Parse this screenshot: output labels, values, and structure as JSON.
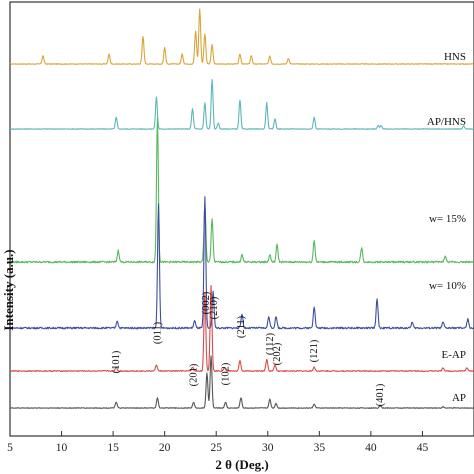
{
  "chart_data": {
    "type": "line",
    "title": "",
    "xlabel": "2 θ (Deg.)",
    "ylabel": "Intensity (a.u.)",
    "xlim": [
      5,
      50
    ],
    "x_ticks": [
      5,
      10,
      15,
      20,
      25,
      30,
      35,
      40,
      45
    ],
    "grid": false,
    "series": [
      {
        "name": "HNS",
        "color": "#d9a53a",
        "peaks": [
          [
            8.2,
            0.15
          ],
          [
            14.6,
            0.18
          ],
          [
            17.9,
            0.5
          ],
          [
            20.0,
            0.3
          ],
          [
            21.7,
            0.18
          ],
          [
            23.0,
            0.6
          ],
          [
            23.4,
            1.0
          ],
          [
            23.9,
            0.55
          ],
          [
            24.6,
            0.35
          ],
          [
            27.3,
            0.18
          ],
          [
            28.4,
            0.15
          ],
          [
            30.2,
            0.14
          ],
          [
            32.0,
            0.1
          ]
        ]
      },
      {
        "name": "AP/HNS",
        "color": "#5fb6b9",
        "peaks": [
          [
            15.3,
            0.2
          ],
          [
            19.2,
            0.55
          ],
          [
            22.7,
            0.35
          ],
          [
            23.9,
            0.45
          ],
          [
            24.6,
            0.85
          ],
          [
            25.2,
            0.1
          ],
          [
            27.3,
            0.5
          ],
          [
            29.9,
            0.45
          ],
          [
            30.7,
            0.18
          ],
          [
            34.5,
            0.2
          ],
          [
            40.7,
            0.06
          ],
          [
            41.0,
            0.06
          ],
          [
            49.0,
            0.05
          ]
        ]
      },
      {
        "name": "w= 15%",
        "color": "#58b85c",
        "peaks": [
          [
            15.5,
            0.08
          ],
          [
            19.3,
            1.0
          ],
          [
            23.9,
            0.4
          ],
          [
            24.6,
            0.3
          ],
          [
            27.5,
            0.05
          ],
          [
            30.2,
            0.05
          ],
          [
            30.9,
            0.12
          ],
          [
            34.5,
            0.15
          ],
          [
            39.1,
            0.1
          ],
          [
            47.2,
            0.04
          ]
        ]
      },
      {
        "name": "w= 10%",
        "color": "#3f4fa0",
        "peaks": [
          [
            15.4,
            0.05
          ],
          [
            19.4,
            0.85
          ],
          [
            22.9,
            0.05
          ],
          [
            23.9,
            0.9
          ],
          [
            24.7,
            0.25
          ],
          [
            27.5,
            0.1
          ],
          [
            30.1,
            0.08
          ],
          [
            30.8,
            0.08
          ],
          [
            34.5,
            0.15
          ],
          [
            40.6,
            0.2
          ],
          [
            44.0,
            0.04
          ],
          [
            47.0,
            0.04
          ],
          [
            49.4,
            0.06
          ]
        ]
      },
      {
        "name": "E-AP",
        "color": "#d94a4a",
        "peaks": [
          [
            15.3,
            0.05
          ],
          [
            19.2,
            0.08
          ],
          [
            22.7,
            0.05
          ],
          [
            23.9,
            1.0
          ],
          [
            24.5,
            1.1
          ],
          [
            25.8,
            0.05
          ],
          [
            27.3,
            0.13
          ],
          [
            29.9,
            0.15
          ],
          [
            30.7,
            0.08
          ],
          [
            34.5,
            0.05
          ],
          [
            47.0,
            0.04
          ],
          [
            49.3,
            0.04
          ]
        ]
      },
      {
        "name": "AP",
        "color": "#555555",
        "peaks": [
          [
            15.3,
            0.1
          ],
          [
            19.3,
            0.17
          ],
          [
            22.8,
            0.1
          ],
          [
            24.1,
            0.6
          ],
          [
            24.5,
            0.9
          ],
          [
            25.9,
            0.1
          ],
          [
            27.4,
            0.18
          ],
          [
            30.2,
            0.15
          ],
          [
            30.8,
            0.08
          ],
          [
            34.5,
            0.07
          ],
          [
            40.9,
            0.04
          ],
          [
            47.0,
            0.02
          ]
        ]
      }
    ],
    "annotations": [
      {
        "text": "(101)",
        "x": 15.3
      },
      {
        "text": "(011)",
        "x": 19.3
      },
      {
        "text": "(201)",
        "x": 22.8
      },
      {
        "text": "(002)",
        "x": 24.0
      },
      {
        "text": "(210)",
        "x": 24.8
      },
      {
        "text": "(102)",
        "x": 25.9
      },
      {
        "text": "(211)",
        "x": 27.4
      },
      {
        "text": "(112)",
        "x": 30.2
      },
      {
        "text": "(202)",
        "x": 30.9
      },
      {
        "text": "(121)",
        "x": 34.5
      },
      {
        "text": "(401)",
        "x": 40.9
      }
    ]
  }
}
